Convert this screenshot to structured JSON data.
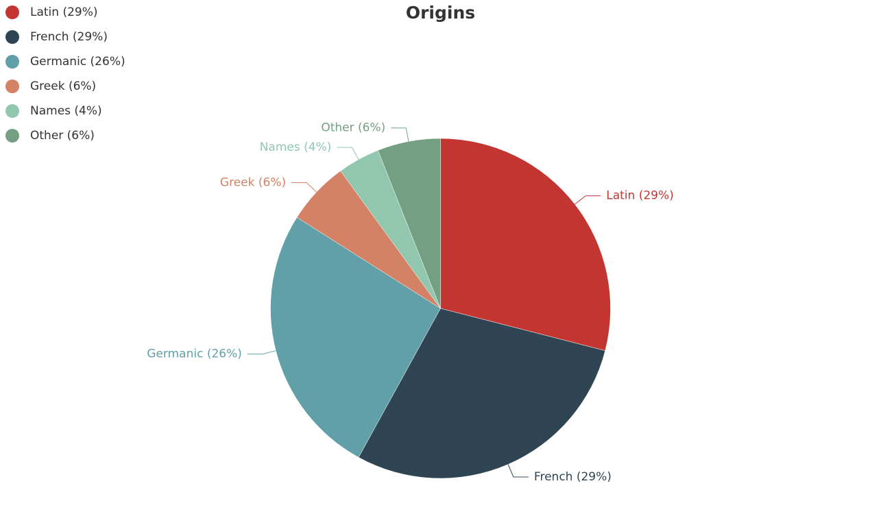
{
  "chart_data": {
    "type": "pie",
    "title": "Origins",
    "legend_position": "top-left",
    "slices": [
      {
        "name": "Latin",
        "value": 29,
        "label": "Latin (29%)",
        "color": "#c23531"
      },
      {
        "name": "French",
        "value": 29,
        "label": "French (29%)",
        "color": "#2f4554"
      },
      {
        "name": "Germanic",
        "value": 26,
        "label": "Germanic (26%)",
        "color": "#61a0a8"
      },
      {
        "name": "Greek",
        "value": 6,
        "label": "Greek (6%)",
        "color": "#d48265"
      },
      {
        "name": "Names",
        "value": 4,
        "label": "Names (4%)",
        "color": "#91c7ae"
      },
      {
        "name": "Other",
        "value": 6,
        "label": "Other (6%)",
        "color": "#749f83"
      }
    ]
  }
}
